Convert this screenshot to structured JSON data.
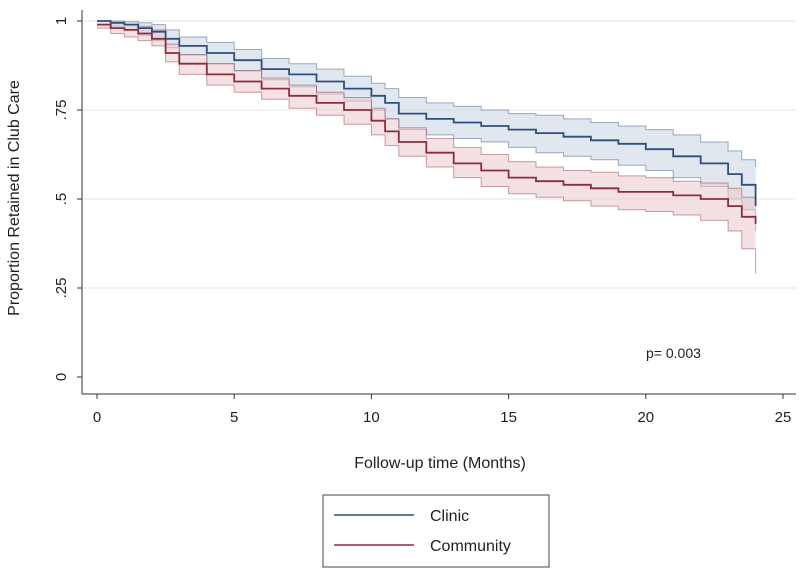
{
  "chart_data": {
    "type": "line",
    "title": "",
    "xlabel": "Follow-up time (Months)",
    "ylabel": "Proportion Retained in Club Care",
    "xlim": [
      0,
      25
    ],
    "ylim": [
      0,
      1
    ],
    "x_ticks": [
      0,
      5,
      10,
      15,
      20,
      25
    ],
    "x_tick_labels": [
      "0",
      "5",
      "10",
      "15",
      "20",
      "25"
    ],
    "y_ticks": [
      0,
      0.25,
      0.5,
      0.75,
      1
    ],
    "y_tick_labels": [
      "0",
      ".25",
      ".5",
      ".75",
      "1"
    ],
    "grid": "horizontal",
    "annotation": "p= 0.003",
    "legend_position": "bottom-center",
    "series": [
      {
        "name": "Clinic",
        "color": "#2e4e7e",
        "band_fill": "#c9d3e0",
        "x": [
          0,
          0.5,
          1,
          1.5,
          2,
          2.5,
          3,
          4,
          5,
          6,
          7,
          8,
          9,
          10,
          10.5,
          11,
          12,
          13,
          14,
          15,
          16,
          17,
          18,
          19,
          20,
          21,
          22,
          23,
          23.5,
          24
        ],
        "y": [
          1.0,
          0.995,
          0.99,
          0.98,
          0.97,
          0.95,
          0.93,
          0.91,
          0.89,
          0.865,
          0.85,
          0.83,
          0.81,
          0.79,
          0.77,
          0.74,
          0.725,
          0.715,
          0.705,
          0.695,
          0.685,
          0.675,
          0.665,
          0.655,
          0.64,
          0.62,
          0.6,
          0.57,
          0.54,
          0.48
        ],
        "lower": [
          1.0,
          0.985,
          0.975,
          0.96,
          0.945,
          0.925,
          0.905,
          0.88,
          0.86,
          0.835,
          0.815,
          0.795,
          0.775,
          0.75,
          0.725,
          0.695,
          0.68,
          0.67,
          0.66,
          0.645,
          0.63,
          0.62,
          0.61,
          0.595,
          0.58,
          0.56,
          0.535,
          0.5,
          0.47,
          0.41
        ],
        "upper": [
          1.0,
          1.0,
          0.998,
          0.995,
          0.99,
          0.975,
          0.955,
          0.94,
          0.92,
          0.895,
          0.88,
          0.865,
          0.845,
          0.825,
          0.81,
          0.785,
          0.77,
          0.76,
          0.75,
          0.74,
          0.735,
          0.725,
          0.715,
          0.705,
          0.695,
          0.68,
          0.66,
          0.635,
          0.61,
          0.59
        ]
      },
      {
        "name": "Community",
        "color": "#8b2c3f",
        "band_fill": "#ebc8cc",
        "x": [
          0,
          0.5,
          1,
          1.5,
          2,
          2.5,
          3,
          4,
          5,
          6,
          7,
          8,
          9,
          10,
          10.5,
          11,
          12,
          13,
          14,
          15,
          16,
          17,
          18,
          19,
          20,
          21,
          22,
          23,
          23.5,
          24
        ],
        "y": [
          0.99,
          0.98,
          0.975,
          0.965,
          0.95,
          0.91,
          0.88,
          0.85,
          0.83,
          0.81,
          0.79,
          0.77,
          0.75,
          0.72,
          0.69,
          0.66,
          0.63,
          0.6,
          0.58,
          0.56,
          0.55,
          0.54,
          0.53,
          0.52,
          0.52,
          0.51,
          0.5,
          0.48,
          0.45,
          0.43
        ],
        "lower": [
          0.98,
          0.965,
          0.955,
          0.945,
          0.93,
          0.885,
          0.85,
          0.82,
          0.8,
          0.78,
          0.755,
          0.735,
          0.71,
          0.68,
          0.65,
          0.62,
          0.59,
          0.56,
          0.535,
          0.515,
          0.505,
          0.495,
          0.48,
          0.47,
          0.465,
          0.455,
          0.44,
          0.41,
          0.36,
          0.29
        ],
        "upper": [
          1.0,
          0.995,
          0.99,
          0.985,
          0.975,
          0.935,
          0.905,
          0.88,
          0.86,
          0.84,
          0.82,
          0.8,
          0.785,
          0.755,
          0.725,
          0.7,
          0.67,
          0.645,
          0.625,
          0.605,
          0.59,
          0.58,
          0.575,
          0.565,
          0.56,
          0.55,
          0.545,
          0.53,
          0.505,
          0.5
        ]
      }
    ]
  }
}
